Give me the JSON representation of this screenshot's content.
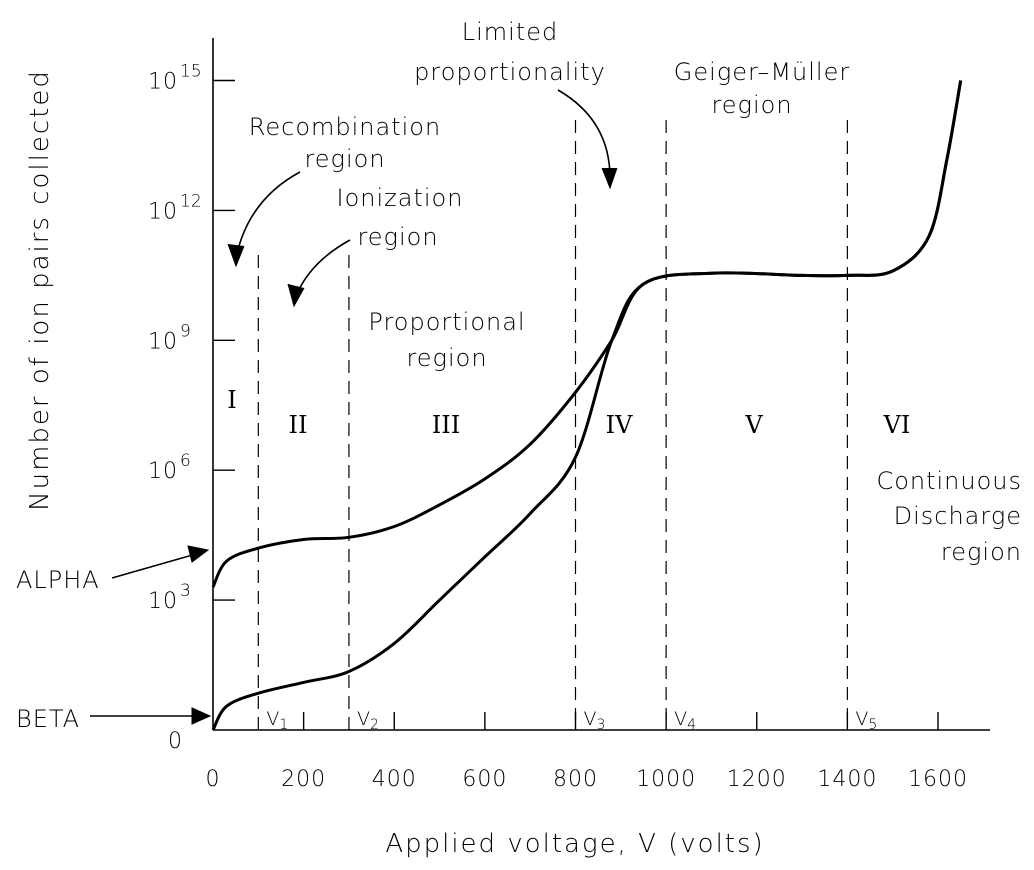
{
  "chart_data": {
    "type": "line",
    "xlabel": "Applied voltage, V (volts)",
    "ylabel": "Number of ion pairs collected",
    "xlim": [
      0,
      1700
    ],
    "x_ticks": [
      0,
      200,
      400,
      600,
      800,
      1000,
      1200,
      1400,
      1600
    ],
    "x_tick_labels": [
      "0",
      "200",
      "400",
      "600",
      "800",
      "1000",
      "1200",
      "1400",
      "1600"
    ],
    "y_ticks": [
      {
        "base": "0",
        "exp": ""
      },
      {
        "base": "10",
        "exp": "3"
      },
      {
        "base": "10",
        "exp": "6"
      },
      {
        "base": "10",
        "exp": "9"
      },
      {
        "base": "10",
        "exp": "12"
      },
      {
        "base": "10",
        "exp": "15"
      }
    ],
    "voltage_markers": [
      {
        "label": "V",
        "sub": "1",
        "x": 100
      },
      {
        "label": "V",
        "sub": "2",
        "x": 300
      },
      {
        "label": "V",
        "sub": "3",
        "x": 800
      },
      {
        "label": "V",
        "sub": "4",
        "x": 1000
      },
      {
        "label": "V",
        "sub": "5",
        "x": 1400
      }
    ],
    "region_numerals": [
      "I",
      "II",
      "III",
      "IV",
      "V",
      "VI"
    ],
    "region_labels": {
      "recombination": [
        "Recombination",
        "region"
      ],
      "ionization": [
        "Ionization",
        "region"
      ],
      "proportional": [
        "Proportional",
        "region"
      ],
      "limited": [
        "Limited",
        "proportionality"
      ],
      "geiger": [
        "Geiger–Müller",
        "region"
      ],
      "continuous": [
        "Continuous",
        "Discharge",
        "region"
      ]
    },
    "series": [
      {
        "name": "ALPHA",
        "x": [
          0,
          30,
          100,
          200,
          300,
          400,
          500,
          600,
          700,
          800,
          880,
          950,
          1100,
          1300,
          1400,
          1500,
          1580,
          1620,
          1650
        ],
        "y": [
          3.3,
          3.9,
          4.2,
          4.4,
          4.45,
          4.7,
          5.2,
          5.8,
          6.6,
          7.8,
          9.0,
          10.3,
          10.55,
          10.5,
          10.5,
          10.6,
          11.4,
          13.2,
          15.0
        ]
      },
      {
        "name": "BETA",
        "x": [
          0,
          30,
          100,
          200,
          300,
          400,
          500,
          600,
          700,
          800,
          880,
          950,
          1100,
          1300,
          1400,
          1500,
          1580,
          1620,
          1650
        ],
        "y": [
          0.0,
          0.55,
          0.85,
          1.1,
          1.35,
          2.0,
          3.0,
          4.0,
          5.0,
          6.3,
          9.0,
          10.3,
          10.55,
          10.5,
          10.5,
          10.6,
          11.4,
          13.2,
          15.0
        ]
      }
    ]
  }
}
